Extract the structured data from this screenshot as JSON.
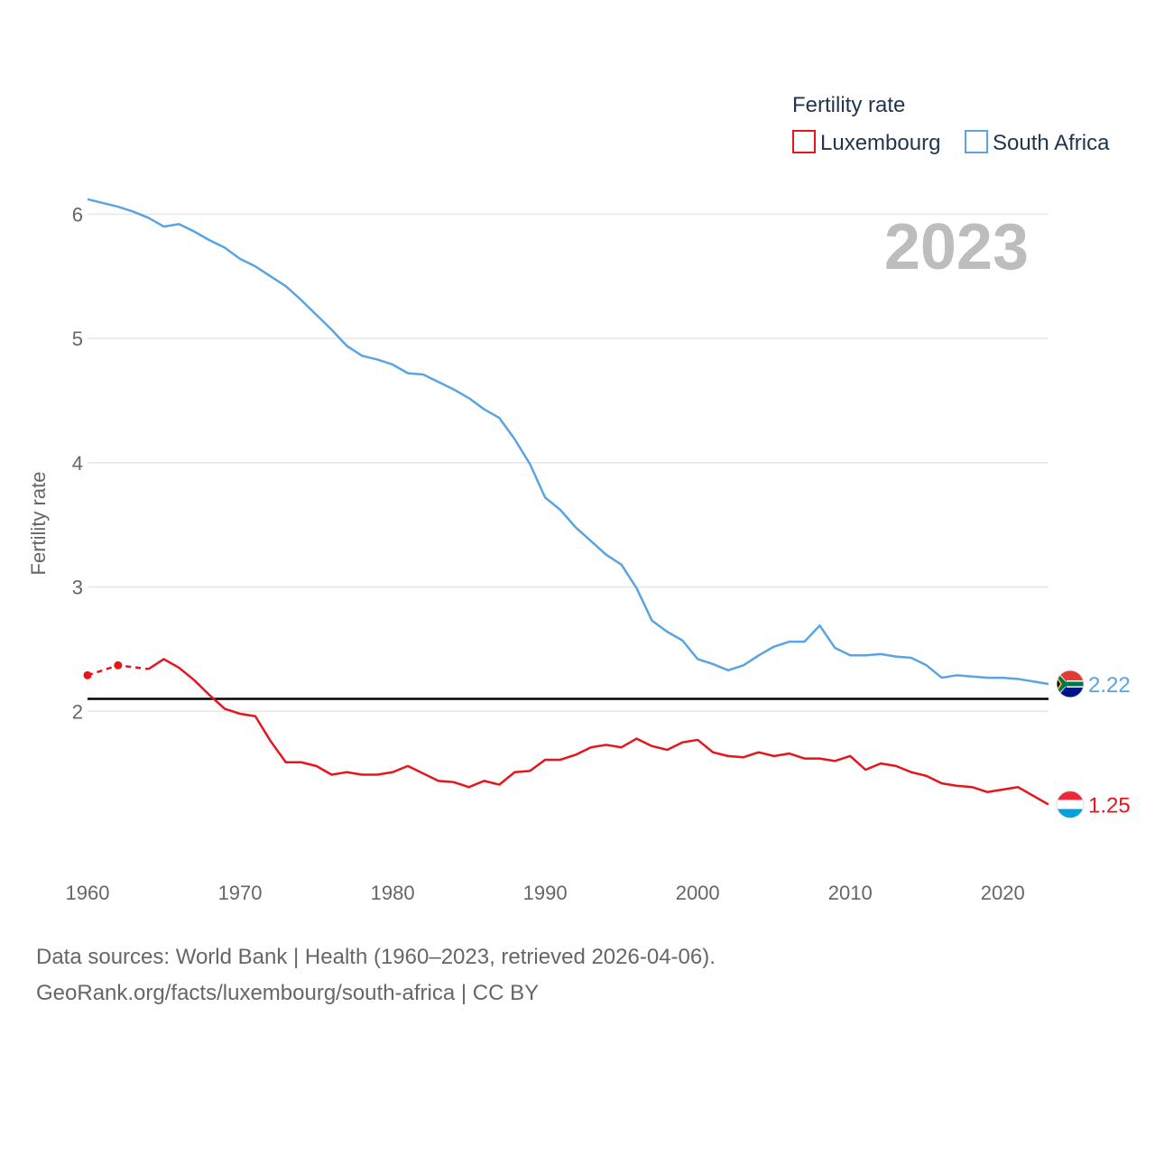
{
  "legend": {
    "title": "Fertility rate",
    "items": [
      {
        "label": "Luxembourg",
        "color": "#e8141c"
      },
      {
        "label": "South Africa",
        "color": "#5aa4e3"
      }
    ]
  },
  "year_label": "2023",
  "source": {
    "line1": "Data sources: World Bank | Health (1960–2023, retrieved 2026-04-06).",
    "line2": "GeoRank.org/facts/luxembourg/south-africa | CC BY"
  },
  "chart_data": {
    "type": "line",
    "title": "Fertility rate",
    "xlabel": "",
    "ylabel": "Fertility rate",
    "xlim": [
      1960,
      2023
    ],
    "ylim": [
      1.0,
      6.3
    ],
    "x_ticks": [
      1960,
      1970,
      1980,
      1990,
      2000,
      2010,
      2020
    ],
    "y_ticks": [
      2,
      3,
      4,
      5,
      6
    ],
    "reference_line": {
      "y": 2.1,
      "color": "#000000"
    },
    "series": [
      {
        "name": "South Africa",
        "color": "#5aa4e3",
        "end_label": "2.22",
        "x": [
          1960,
          1961,
          1962,
          1963,
          1964,
          1965,
          1966,
          1967,
          1968,
          1969,
          1970,
          1971,
          1972,
          1973,
          1974,
          1975,
          1976,
          1977,
          1978,
          1979,
          1980,
          1981,
          1982,
          1983,
          1984,
          1985,
          1986,
          1987,
          1988,
          1989,
          1990,
          1991,
          1992,
          1993,
          1994,
          1995,
          1996,
          1997,
          1998,
          1999,
          2000,
          2001,
          2002,
          2003,
          2004,
          2005,
          2006,
          2007,
          2008,
          2009,
          2010,
          2011,
          2012,
          2013,
          2014,
          2015,
          2016,
          2017,
          2018,
          2019,
          2020,
          2021,
          2022,
          2023
        ],
        "values": [
          6.12,
          6.09,
          6.06,
          6.02,
          5.97,
          5.9,
          5.92,
          5.86,
          5.79,
          5.73,
          5.64,
          5.58,
          5.5,
          5.42,
          5.31,
          5.19,
          5.07,
          4.94,
          4.86,
          4.83,
          4.79,
          4.72,
          4.71,
          4.65,
          4.59,
          4.52,
          4.43,
          4.36,
          4.19,
          3.99,
          3.72,
          3.62,
          3.48,
          3.37,
          3.26,
          3.18,
          2.99,
          2.73,
          2.64,
          2.57,
          2.42,
          2.38,
          2.33,
          2.37,
          2.45,
          2.52,
          2.56,
          2.56,
          2.69,
          2.51,
          2.45,
          2.45,
          2.46,
          2.44,
          2.43,
          2.37,
          2.27,
          2.29,
          2.28,
          2.27,
          2.27,
          2.26,
          2.24,
          2.22
        ]
      },
      {
        "name": "Luxembourg",
        "color": "#e8141c",
        "end_label": "1.25",
        "estimated_x": [
          1960,
          1962,
          1964
        ],
        "estimated_values": [
          2.29,
          2.37,
          2.34
        ],
        "x": [
          1964,
          1965,
          1966,
          1967,
          1968,
          1969,
          1970,
          1971,
          1972,
          1973,
          1974,
          1975,
          1976,
          1977,
          1978,
          1979,
          1980,
          1981,
          1982,
          1983,
          1984,
          1985,
          1986,
          1987,
          1988,
          1989,
          1990,
          1991,
          1992,
          1993,
          1994,
          1995,
          1996,
          1997,
          1998,
          1999,
          2000,
          2001,
          2002,
          2003,
          2004,
          2005,
          2006,
          2007,
          2008,
          2009,
          2010,
          2011,
          2012,
          2013,
          2014,
          2015,
          2016,
          2017,
          2018,
          2019,
          2020,
          2021,
          2022,
          2023
        ],
        "values": [
          2.34,
          2.42,
          2.35,
          2.25,
          2.13,
          2.02,
          1.98,
          1.96,
          1.76,
          1.59,
          1.59,
          1.56,
          1.49,
          1.51,
          1.49,
          1.49,
          1.51,
          1.56,
          1.5,
          1.44,
          1.43,
          1.39,
          1.44,
          1.41,
          1.51,
          1.52,
          1.61,
          1.61,
          1.65,
          1.71,
          1.73,
          1.71,
          1.78,
          1.72,
          1.69,
          1.75,
          1.77,
          1.67,
          1.64,
          1.63,
          1.67,
          1.64,
          1.66,
          1.62,
          1.62,
          1.6,
          1.64,
          1.53,
          1.58,
          1.56,
          1.51,
          1.48,
          1.42,
          1.4,
          1.39,
          1.35,
          1.37,
          1.39,
          1.32,
          1.25
        ]
      }
    ]
  }
}
